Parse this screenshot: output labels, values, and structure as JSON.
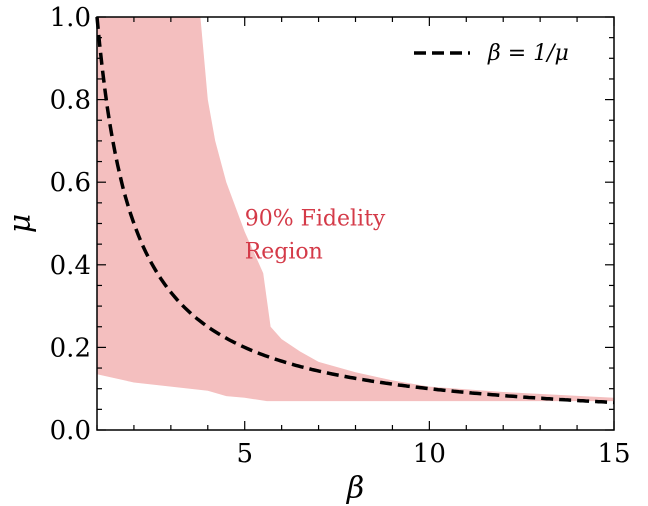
{
  "chart_data": {
    "type": "area",
    "xlabel": "β",
    "ylabel": "μ",
    "xlim": [
      1,
      15
    ],
    "ylim": [
      0,
      1
    ],
    "xticks": [
      5,
      10,
      15
    ],
    "yticks": [
      0.0,
      0.2,
      0.4,
      0.6,
      0.8,
      1.0
    ],
    "xtick_labels": [
      "5",
      "10",
      "15"
    ],
    "ytick_labels": [
      "0.0",
      "0.2",
      "0.4",
      "0.6",
      "0.8",
      "1.0"
    ],
    "grid": false,
    "legend_position": "top-right",
    "region": {
      "color": "#f4bfbf",
      "upper": {
        "x": [
          1,
          3.8,
          3.9,
          4.0,
          4.2,
          4.5,
          5.0,
          5.5,
          5.7,
          6.0,
          6.5,
          7.0,
          8.0,
          9.0,
          10.0,
          12.0,
          15.0
        ],
        "y": [
          1.0,
          1.0,
          0.9,
          0.8,
          0.7,
          0.6,
          0.48,
          0.38,
          0.25,
          0.22,
          0.19,
          0.165,
          0.14,
          0.12,
          0.105,
          0.092,
          0.078
        ]
      },
      "lower": {
        "x": [
          1,
          2,
          3,
          4,
          4.5,
          5.0,
          5.6,
          6.0,
          8.0,
          10.0,
          15.0
        ],
        "y": [
          0.135,
          0.115,
          0.105,
          0.095,
          0.082,
          0.078,
          0.07,
          0.07,
          0.07,
          0.07,
          0.07
        ]
      }
    },
    "series": [
      {
        "name": "β = 1/μ",
        "style": "dashed",
        "color": "#000000",
        "formula": "mu = 1 / beta"
      }
    ],
    "annotations": [
      {
        "text": "90% Fidelity",
        "x": 5.0,
        "y": 0.495,
        "color": "#d43a48"
      },
      {
        "text": "Region",
        "x": 5.0,
        "y": 0.415,
        "color": "#d43a48"
      }
    ]
  }
}
